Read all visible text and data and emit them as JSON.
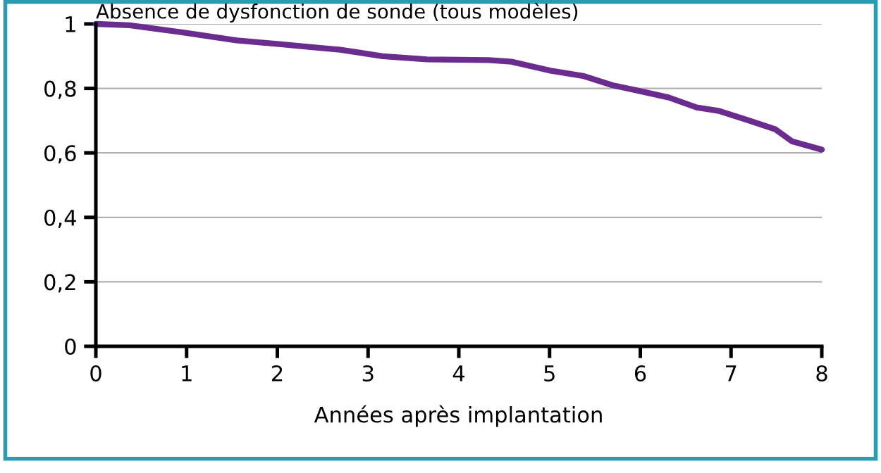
{
  "chart_data": {
    "type": "line",
    "title": "Absence de dysfonction de sonde (tous modèles)",
    "xlabel": "Années après implantation",
    "x": [
      0,
      0.37,
      1.0,
      1.55,
      2.04,
      2.41,
      2.69,
      3.16,
      3.65,
      4.33,
      4.58,
      5.01,
      5.38,
      5.69,
      5.94,
      6.31,
      6.62,
      6.87,
      7.18,
      7.49,
      7.67,
      8.0
    ],
    "series": [
      {
        "color": "#6a2d8f",
        "values": [
          1.0,
          0.996,
          0.972,
          0.949,
          0.937,
          0.927,
          0.92,
          0.9,
          0.89,
          0.888,
          0.883,
          0.855,
          0.838,
          0.81,
          0.795,
          0.772,
          0.741,
          0.73,
          0.702,
          0.673,
          0.636,
          0.61
        ]
      }
    ],
    "xlim": [
      0,
      8
    ],
    "ylim": [
      0,
      1
    ],
    "xticks": [
      0,
      1,
      2,
      3,
      4,
      5,
      6,
      7,
      8
    ],
    "yticks": [
      0,
      {
        "value": 0.2,
        "label": "0,2"
      },
      {
        "value": 0.4,
        "label": "0,4"
      },
      {
        "value": 0.6,
        "label": "0,6"
      },
      {
        "value": 0.8,
        "label": "0,8"
      },
      1
    ],
    "grid": "y",
    "marker": "none",
    "line_style": "solid",
    "legend": false
  }
}
